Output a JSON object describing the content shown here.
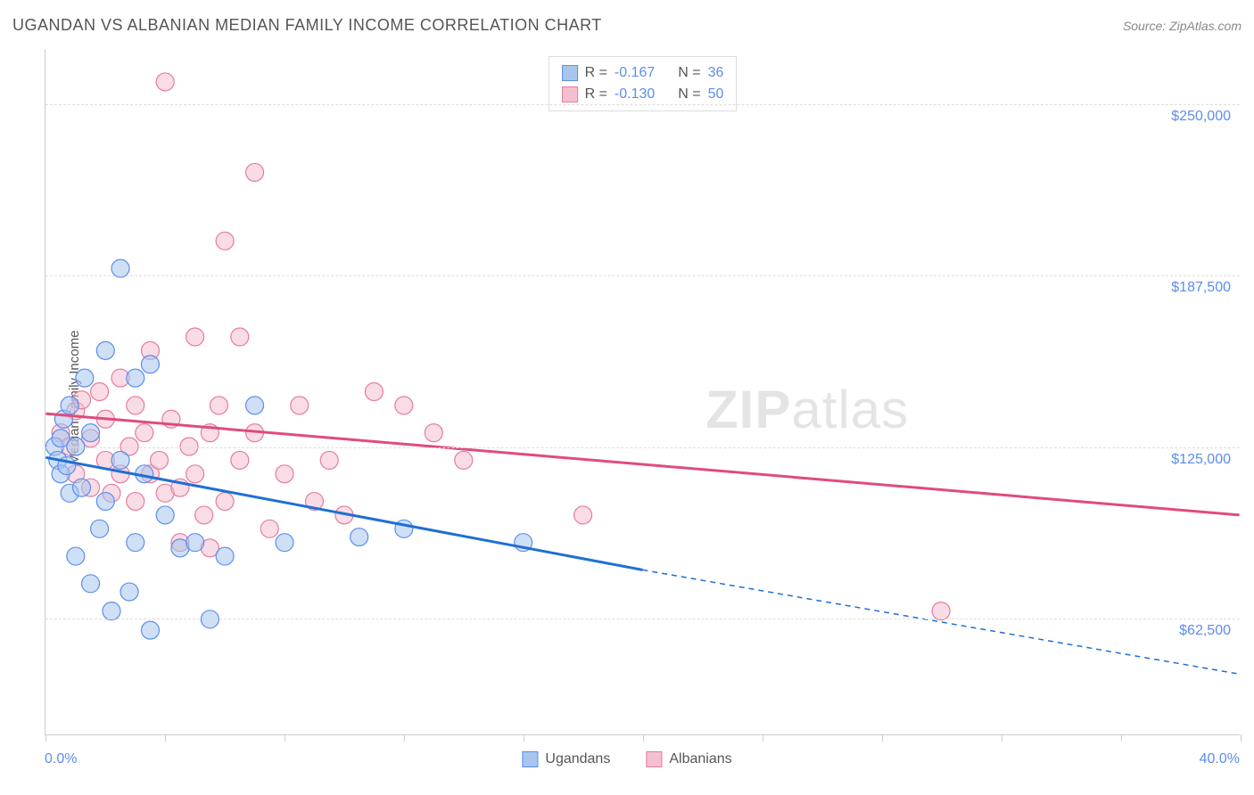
{
  "title": "UGANDAN VS ALBANIAN MEDIAN FAMILY INCOME CORRELATION CHART",
  "source_label": "Source: ZipAtlas.com",
  "watermark_zip": "ZIP",
  "watermark_atlas": "atlas",
  "y_axis_label": "Median Family Income",
  "chart": {
    "type": "scatter",
    "xlim": [
      0,
      40
    ],
    "ylim": [
      20000,
      270000
    ],
    "x_tick_positions": [
      0,
      4,
      8,
      12,
      16,
      20,
      24,
      28,
      32,
      36,
      40
    ],
    "x_min_label": "0.0%",
    "x_max_label": "40.0%",
    "y_gridlines": [
      62500,
      125000,
      187500,
      250000
    ],
    "y_tick_labels": [
      "$62,500",
      "$125,000",
      "$187,500",
      "$250,000"
    ],
    "background_color": "#ffffff",
    "grid_color": "#dddddd",
    "axis_color": "#cccccc",
    "marker_radius": 10,
    "marker_opacity": 0.55,
    "series": [
      {
        "name": "Ugandans",
        "color_fill": "#a8c5ec",
        "color_stroke": "#5b8def",
        "line_color": "#1f6fd4",
        "r_value": "-0.167",
        "n_value": "36",
        "regression": {
          "x1": 0,
          "y1": 121000,
          "x2": 20,
          "y2": 80000,
          "x2_dash": 40,
          "y2_dash": 42000
        },
        "points": [
          [
            0.3,
            125000
          ],
          [
            0.4,
            120000
          ],
          [
            0.5,
            128000
          ],
          [
            0.5,
            115000
          ],
          [
            0.6,
            135000
          ],
          [
            0.7,
            118000
          ],
          [
            0.8,
            140000
          ],
          [
            0.8,
            108000
          ],
          [
            1.0,
            125000
          ],
          [
            1.0,
            85000
          ],
          [
            1.2,
            110000
          ],
          [
            1.3,
            150000
          ],
          [
            1.5,
            75000
          ],
          [
            1.5,
            130000
          ],
          [
            1.8,
            95000
          ],
          [
            2.0,
            160000
          ],
          [
            2.0,
            105000
          ],
          [
            2.2,
            65000
          ],
          [
            2.5,
            190000
          ],
          [
            2.5,
            120000
          ],
          [
            2.8,
            72000
          ],
          [
            3.0,
            150000
          ],
          [
            3.0,
            90000
          ],
          [
            3.3,
            115000
          ],
          [
            3.5,
            155000
          ],
          [
            3.5,
            58000
          ],
          [
            4.0,
            100000
          ],
          [
            4.5,
            88000
          ],
          [
            5.0,
            90000
          ],
          [
            5.5,
            62000
          ],
          [
            6.0,
            85000
          ],
          [
            7.0,
            140000
          ],
          [
            8.0,
            90000
          ],
          [
            10.5,
            92000
          ],
          [
            12.0,
            95000
          ],
          [
            16.0,
            90000
          ]
        ]
      },
      {
        "name": "Albanians",
        "color_fill": "#f4c0d0",
        "color_stroke": "#e57ba0",
        "line_color": "#e04b7e",
        "r_value": "-0.130",
        "n_value": "50",
        "regression": {
          "x1": 0,
          "y1": 137000,
          "x2": 40,
          "y2": 100000
        },
        "points": [
          [
            0.5,
            130000
          ],
          [
            0.8,
            125000
          ],
          [
            1.0,
            138000
          ],
          [
            1.0,
            115000
          ],
          [
            1.2,
            142000
          ],
          [
            1.5,
            128000
          ],
          [
            1.5,
            110000
          ],
          [
            1.8,
            145000
          ],
          [
            2.0,
            120000
          ],
          [
            2.0,
            135000
          ],
          [
            2.2,
            108000
          ],
          [
            2.5,
            150000
          ],
          [
            2.5,
            115000
          ],
          [
            2.8,
            125000
          ],
          [
            3.0,
            140000
          ],
          [
            3.0,
            105000
          ],
          [
            3.3,
            130000
          ],
          [
            3.5,
            160000
          ],
          [
            3.5,
            115000
          ],
          [
            3.8,
            120000
          ],
          [
            4.0,
            108000
          ],
          [
            4.0,
            258000
          ],
          [
            4.2,
            135000
          ],
          [
            4.5,
            110000
          ],
          [
            4.8,
            125000
          ],
          [
            5.0,
            165000
          ],
          [
            5.0,
            115000
          ],
          [
            5.3,
            100000
          ],
          [
            5.5,
            130000
          ],
          [
            5.8,
            140000
          ],
          [
            6.0,
            105000
          ],
          [
            6.0,
            200000
          ],
          [
            6.5,
            120000
          ],
          [
            6.5,
            165000
          ],
          [
            7.0,
            225000
          ],
          [
            7.0,
            130000
          ],
          [
            7.5,
            95000
          ],
          [
            8.0,
            115000
          ],
          [
            8.5,
            140000
          ],
          [
            9.0,
            105000
          ],
          [
            9.5,
            120000
          ],
          [
            10.0,
            100000
          ],
          [
            11.0,
            145000
          ],
          [
            12.0,
            140000
          ],
          [
            13.0,
            130000
          ],
          [
            14.0,
            120000
          ],
          [
            18.0,
            100000
          ],
          [
            30.0,
            65000
          ],
          [
            5.5,
            88000
          ],
          [
            4.5,
            90000
          ]
        ]
      }
    ]
  },
  "legend_top": {
    "r_label": "R =",
    "n_label": "N ="
  },
  "legend_bottom": {
    "series1": "Ugandans",
    "series2": "Albanians"
  }
}
